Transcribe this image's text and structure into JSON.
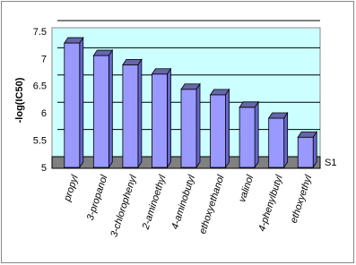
{
  "chart_data": {
    "type": "bar",
    "y_label": "-log(IC50)",
    "categories": [
      "propyl",
      "3-propanol",
      "3-chlorophenyl",
      "2-aminoethyl",
      "4-aminobutyl",
      "ethoxyethanol",
      "valinol",
      "4-phenylbutyl",
      "ethoxyethyl"
    ],
    "series": [
      {
        "name": "S1",
        "color": "#9999ff",
        "values": [
          7.4,
          7.17,
          7.0,
          6.83,
          6.55,
          6.45,
          6.22,
          6.02,
          5.67
        ]
      }
    ],
    "ylim": [
      5,
      7.5
    ],
    "yticks": [
      5,
      5.5,
      6,
      6.5,
      7,
      7.5
    ],
    "grid": true,
    "background": "#ccffff",
    "floor_color": "#808080"
  }
}
